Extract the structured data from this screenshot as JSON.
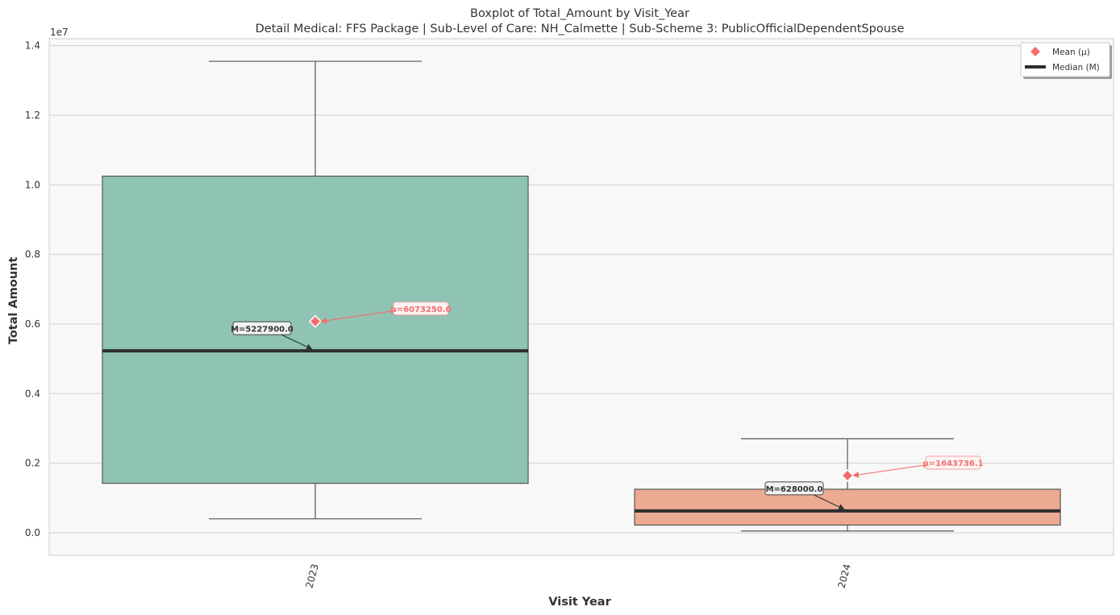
{
  "chart_data": {
    "type": "box",
    "title": "Boxplot of Total_Amount by Visit_Year",
    "subtitle": "Detail Medical: FFS Package | Sub-Level of Care: NH_Calmette | Sub-Scheme 3: PublicOfficialDependentSpouse",
    "xlabel": "Visit Year",
    "ylabel": "Total Amount",
    "y_offset_label": "1e7",
    "ylim": [
      -0.065,
      1.42
    ],
    "y_scale": 10000000.0,
    "yticks": [
      0.0,
      0.2,
      0.4,
      0.6,
      0.8,
      1.0,
      1.2,
      1.4
    ],
    "ytick_labels": [
      "0.0",
      "0.2",
      "0.4",
      "0.6",
      "0.8",
      "1.0",
      "1.2",
      "1.4"
    ],
    "categories": [
      "2023",
      "2024"
    ],
    "grid": true,
    "legend_position": "top-right",
    "legend": [
      {
        "label": "Mean (μ)",
        "marker": "diamond",
        "color": "#f46d6d"
      },
      {
        "label": "Median (M)",
        "marker": "line",
        "color": "#2d2d2d"
      }
    ],
    "boxes": [
      {
        "category": "2023",
        "whisker_low": 0.04,
        "q1": 0.142,
        "median": 0.52279,
        "q3": 1.025,
        "whisker_high": 1.355,
        "mean": 0.607325,
        "color": "#8fc3b3",
        "median_label": "M=5227900.0",
        "mean_label": "μ=6073250.0"
      },
      {
        "category": "2024",
        "whisker_low": 0.005,
        "q1": 0.022,
        "median": 0.0628,
        "q3": 0.125,
        "whisker_high": 0.27,
        "mean": 0.16437361,
        "color": "#ecaa92",
        "median_label": "M=628000.0",
        "mean_label": "μ=1643736.1"
      }
    ]
  }
}
